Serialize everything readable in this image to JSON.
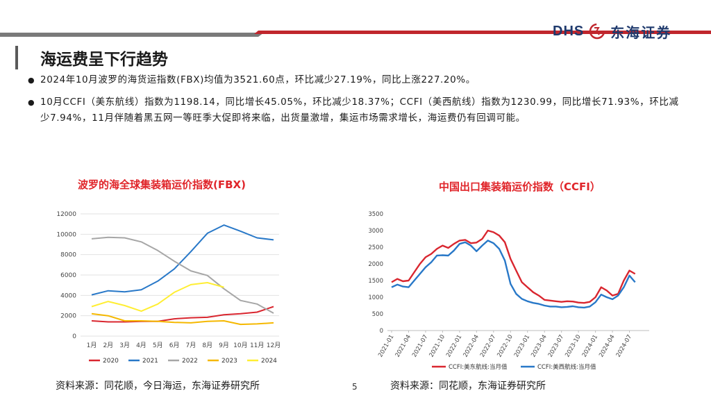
{
  "header": {
    "logo_latin": "DHS",
    "logo_cn": "东海证券",
    "colors": {
      "accent": "#c0262d",
      "brand": "#1f3a6d"
    }
  },
  "page_title": "海运费呈下行趋势",
  "bullets": [
    "2024年10月波罗的海货运指数(FBX)均值为3521.60点，环比减少27.19%，同比上涨227.20%。",
    "10月CCFI（美东航线）指数为1198.14，同比增长45.05%，环比减少18.37%；CCFI（美西航线）指数为1230.99，同比增长71.93%，环比减少7.94%，11月伴随着黑五网一等旺季大促即将来临，出货量激增，集运市场需求增长，海运费仍有回调可能。"
  ],
  "chart_data": [
    {
      "type": "line",
      "title": "波罗的海全球集装箱运价指数(FBX)",
      "categories": [
        "1月",
        "2月",
        "3月",
        "4月",
        "5月",
        "6月",
        "7月",
        "8月",
        "9月",
        "10月",
        "11月",
        "12月"
      ],
      "ylim": [
        0,
        12000
      ],
      "yticks": [
        0,
        2000,
        4000,
        6000,
        8000,
        10000,
        12000
      ],
      "legend_position": "bottom",
      "series": [
        {
          "name": "2020",
          "color": "#d9262f",
          "values": [
            1500,
            1400,
            1400,
            1450,
            1450,
            1700,
            1800,
            1850,
            2100,
            2200,
            2350,
            2900
          ]
        },
        {
          "name": "2021",
          "color": "#2878c8",
          "values": [
            4050,
            4450,
            4350,
            4550,
            5400,
            6600,
            8300,
            10100,
            10900,
            10300,
            9650,
            9450
          ]
        },
        {
          "name": "2022",
          "color": "#a6a6a6",
          "values": [
            9550,
            9700,
            9650,
            9250,
            8400,
            7350,
            6400,
            5950,
            4650,
            3500,
            3150,
            2250
          ]
        },
        {
          "name": "2023",
          "color": "#f5b800",
          "values": [
            2200,
            2000,
            1500,
            1500,
            1450,
            1350,
            1300,
            1450,
            1500,
            1150,
            1200,
            1300
          ]
        },
        {
          "name": "2024",
          "color": "#ffee33",
          "values": [
            2900,
            3400,
            3000,
            2450,
            3150,
            4300,
            5050,
            5250,
            4800,
            null,
            null,
            null
          ]
        }
      ]
    },
    {
      "type": "line",
      "title": "中国出口集装箱运价指数（CCFI）",
      "x": [
        "2021-01",
        "2021-02",
        "2021-03",
        "2021-04",
        "2021-05",
        "2021-06",
        "2021-07",
        "2021-08",
        "2021-09",
        "2021-10",
        "2021-11",
        "2021-12",
        "2022-01",
        "2022-02",
        "2022-03",
        "2022-04",
        "2022-05",
        "2022-06",
        "2022-07",
        "2022-08",
        "2022-09",
        "2022-10",
        "2022-11",
        "2022-12",
        "2023-01",
        "2023-02",
        "2023-03",
        "2023-04",
        "2023-05",
        "2023-06",
        "2023-07",
        "2023-08",
        "2023-09",
        "2023-10",
        "2023-11",
        "2023-12",
        "2024-01",
        "2024-02",
        "2024-03",
        "2024-04",
        "2024-05",
        "2024-06",
        "2024-07",
        "2024-08",
        "2024-09",
        "2024-10"
      ],
      "xtick_labels": [
        "2021-01",
        "2021-04",
        "2021-07",
        "2021-10",
        "2022-01",
        "2022-04",
        "2022-07",
        "2022-10",
        "2023-01",
        "2023-04",
        "2023-07",
        "2023-10",
        "2024-01",
        "2024-04",
        "2024-07"
      ],
      "ylim": [
        0,
        3500
      ],
      "yticks": [
        0,
        500,
        1000,
        1500,
        2000,
        2500,
        3000,
        3500
      ],
      "legend_position": "bottom",
      "series": [
        {
          "name": "CCFI:美东航线:当月值",
          "color": "#d9262f",
          "values": [
            1450,
            1550,
            1480,
            1500,
            1750,
            2000,
            2200,
            2300,
            2450,
            2550,
            2480,
            2600,
            2700,
            2720,
            2620,
            2640,
            2750,
            3000,
            2950,
            2850,
            2650,
            2150,
            1800,
            1450,
            1300,
            1150,
            1050,
            920,
            900,
            880,
            860,
            880,
            870,
            840,
            830,
            860,
            1000,
            1300,
            1200,
            1050,
            1100,
            1500,
            1800,
            1700,
            null,
            null
          ]
        },
        {
          "name": "CCFI:美西航线:当月值",
          "color": "#2878c8",
          "values": [
            1300,
            1380,
            1320,
            1300,
            1500,
            1700,
            1900,
            2050,
            2250,
            2260,
            2250,
            2400,
            2600,
            2650,
            2550,
            2380,
            2550,
            2700,
            2620,
            2450,
            2100,
            1400,
            1100,
            950,
            880,
            830,
            800,
            750,
            720,
            720,
            700,
            710,
            730,
            700,
            690,
            720,
            850,
            1080,
            1000,
            940,
            1050,
            1300,
            1650,
            1450,
            null,
            null
          ]
        }
      ]
    }
  ],
  "sources": {
    "left": "资料来源：同花顺，今日海运，东海证券研究所",
    "right": "资料来源：同花顺，东海证券研究所"
  },
  "page_number": "5"
}
